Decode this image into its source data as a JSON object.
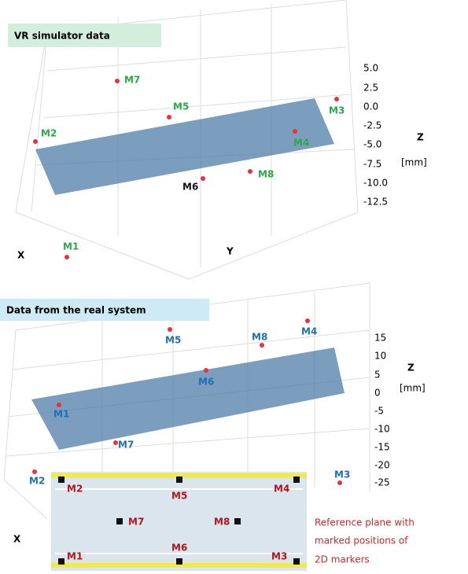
{
  "panels": [
    {
      "title": "VR simulator data",
      "z_ticks": [
        "5.0",
        "2.5",
        "0.0",
        "-2.5",
        "-5.0",
        "-7.5",
        "-10.0",
        "-12.5"
      ],
      "z_label": "Z",
      "z_unit": "[mm]",
      "x_label": "X",
      "y_label": "Y",
      "markers": [
        "M1",
        "M2",
        "M3",
        "M4",
        "M5",
        "M6",
        "M7",
        "M8"
      ]
    },
    {
      "title": "Data from the real system",
      "z_ticks": [
        "15",
        "10",
        "5",
        "0",
        "-5",
        "-10",
        "-15",
        "-20",
        "-25"
      ],
      "z_label": "Z",
      "z_unit": "[mm]",
      "x_label": "X",
      "markers": [
        "M1",
        "M2",
        "M3",
        "M4",
        "M5",
        "M6",
        "M7",
        "M8"
      ]
    }
  ],
  "inset": {
    "markers": [
      "M1",
      "M2",
      "M3",
      "M4",
      "M5",
      "M6",
      "M7",
      "M8"
    ],
    "caption": [
      "Reference plane with",
      "marked positions of",
      "2D markers"
    ]
  }
}
